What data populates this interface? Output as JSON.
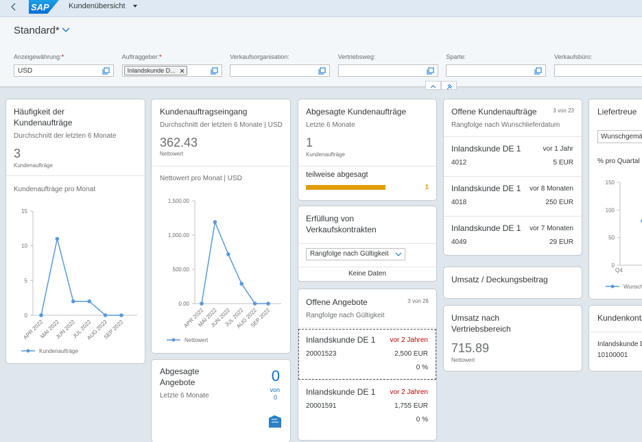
{
  "shell": {
    "logo": "SAP",
    "title": "Kundenübersicht"
  },
  "header": {
    "variant": "Standard*",
    "filters": [
      {
        "label": "Anzeigewährung:",
        "required": "*",
        "value": "USD"
      },
      {
        "label": "Auftraggeber:",
        "required": "*",
        "token": "Inlandskunde D..."
      },
      {
        "label": "Verkaufsorganisation:"
      },
      {
        "label": "Vertriebsweg:"
      },
      {
        "label": "Sparte:"
      },
      {
        "label": "Verkaufsbüro:"
      }
    ]
  },
  "cards": {
    "haeufigkeit": {
      "title": "Häufigkeit der Kundenaufträge",
      "subtitle": "Durchschnitt der letzten 6 Monate",
      "kpi": 3,
      "kpi_label": "Kundenaufträge",
      "chart": {
        "type": "line",
        "title": "Kundenaufträge pro Monat",
        "categories": [
          "APR 2022",
          "MAI 2022",
          "JUN 2022",
          "JUL 2022",
          "AUG 2022",
          "SEP 2022"
        ],
        "series": [
          {
            "name": "Kundenaufträge",
            "color": "#5899da",
            "values": [
              0,
              11,
              2,
              2,
              0,
              0
            ]
          }
        ],
        "ylim": [
          0,
          15
        ],
        "yticks": [
          0,
          5,
          10,
          15
        ],
        "grid": false
      }
    },
    "eingang": {
      "title": "Kundenauftragseingang",
      "subtitle": "Durchschnitt der letzten 6 Monate | USD",
      "kpi": 362.43,
      "kpi_label": "Nettowert",
      "chart": {
        "type": "line",
        "title": "Nettowert pro Monat | USD",
        "categories": [
          "APR 2022",
          "MAI 2022",
          "JUN 2022",
          "JUL 2022",
          "AUG 2022",
          "SEP 2022"
        ],
        "series": [
          {
            "name": "Nettowert",
            "color": "#5899da",
            "values": [
              0,
              1190,
              720,
              290,
              0,
              0
            ]
          }
        ],
        "ylim": [
          0,
          1500
        ],
        "yticks": [
          {
            "value": 0,
            "label": "0.00"
          },
          {
            "value": 500,
            "label": "500.00"
          },
          {
            "value": 1000,
            "label": "1,000.00"
          },
          {
            "value": 1500,
            "label": "1,500.00"
          }
        ],
        "grid": false
      }
    },
    "abgesagte_angebote": {
      "title": "Abgesagte Angebote",
      "subtitle": "Letzte 6 Monate",
      "kpi": 0,
      "of": "von",
      "total": 0
    },
    "abgesagte_auftraege": {
      "title": "Abgesagte Kundenaufträge",
      "subtitle": "Letzte 6 Monate",
      "kpi": 1,
      "kpi_label": "Kundenaufträge",
      "chart": {
        "type": "bar",
        "categories": [
          "teilweise abgesagt"
        ],
        "values": [
          1
        ],
        "color": "#e09d00"
      }
    },
    "erfuellung": {
      "title": "Erfüllung von Verkaufskontrakten",
      "select": "Rangfolge nach Gültigkeit",
      "empty": "Keine Daten"
    },
    "offene_angebote": {
      "title": "Offene Angebote",
      "count": "3 von 26",
      "subtitle": "Rangfolge nach Gültigkeit",
      "items": [
        {
          "name": "Inlandskunde DE 1",
          "date": "vor 2 Jahren",
          "id": "20001523",
          "amount": "2,500 EUR",
          "percent": "0 %"
        },
        {
          "name": "Inlandskunde DE 1",
          "date": "vor 2 Jahren",
          "id": "20001591",
          "amount": "1,755 EUR",
          "percent": "0 %"
        }
      ]
    },
    "offene_auftraege": {
      "title": "Offene Kundenaufträge",
      "count": "3 von 23",
      "subtitle": "Rangfolge nach Wunschlieferdatum",
      "items": [
        {
          "name": "Inlandskunde DE 1",
          "date": "vor 1 Jahr",
          "id": "4012",
          "amount": "5 EUR"
        },
        {
          "name": "Inlandskunde DE 1",
          "date": "vor 8 Monaten",
          "id": "4018",
          "amount": "250 EUR"
        },
        {
          "name": "Inlandskunde DE 1",
          "date": "vor 7 Monaten",
          "id": "4049",
          "amount": "29 EUR"
        }
      ]
    },
    "umsatz_deckung": {
      "title": "Umsatz / Deckungsbeitrag"
    },
    "umsatz_bereich": {
      "title": "Umsatz nach Vertriebsbereich",
      "kpi": 715.89,
      "kpi_label": "Nettowert"
    },
    "liefertreue": {
      "title": "Liefertreue",
      "select": "Wunschgemä",
      "chart": {
        "type": "line",
        "title": "% pro Quartal",
        "categories": [
          "Q4"
        ],
        "series": [
          {
            "name": "Wunsch",
            "color": "#5899da",
            "values": [
              80
            ]
          }
        ],
        "ylim": [
          0,
          150
        ],
        "yticks": [
          0,
          50,
          100,
          150
        ],
        "grid": false
      }
    },
    "kontakt": {
      "title": "Kundenkonta",
      "contact": "Inlandskunde D",
      "id": "10100001"
    }
  }
}
